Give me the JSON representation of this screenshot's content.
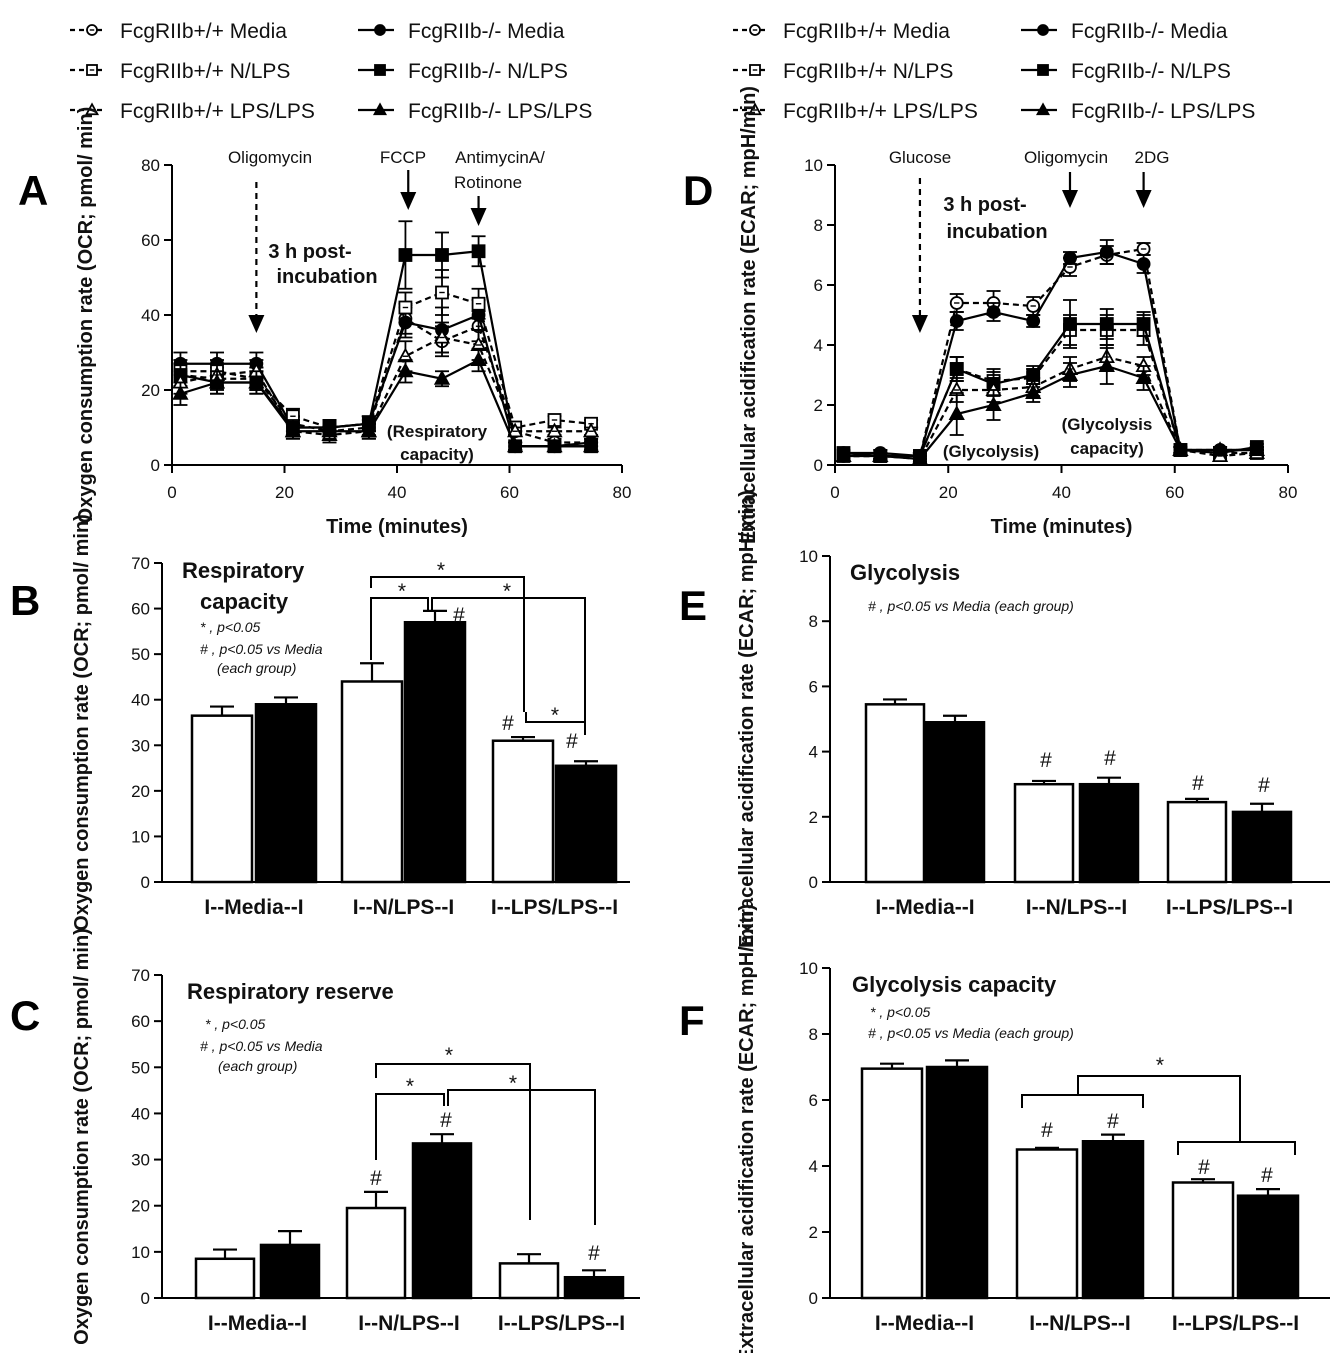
{
  "legend": [
    {
      "label": "FcgRIIb+/+ Media",
      "marker": "circle",
      "fill": "open",
      "dash": true
    },
    {
      "label": "FcgRIIb-/- Media",
      "marker": "circle",
      "fill": "filled",
      "dash": false
    },
    {
      "label": "FcgRIIb+/+ N/LPS",
      "marker": "square",
      "fill": "open",
      "dash": true
    },
    {
      "label": "FcgRIIb-/- N/LPS",
      "marker": "square",
      "fill": "filled",
      "dash": false
    },
    {
      "label": "FcgRIIb+/+ LPS/LPS",
      "marker": "triangle",
      "fill": "open",
      "dash": true
    },
    {
      "label": "FcgRIIb-/- LPS/LPS",
      "marker": "triangle",
      "fill": "filled",
      "dash": false
    }
  ],
  "chart_data": [
    {
      "panel": "A",
      "type": "line",
      "xlabel": "Time (minutes)",
      "ylabel": "Oxygen consumption rate (OCR; pmol/ min)",
      "xlim": [
        0,
        80
      ],
      "ylim": [
        0,
        80
      ],
      "xticks": [
        0,
        20,
        40,
        60,
        80
      ],
      "yticks": [
        0,
        20,
        40,
        60,
        80
      ],
      "x": [
        1.5,
        8,
        15,
        21.5,
        28,
        35,
        41.5,
        48,
        54.5,
        61,
        68,
        74.5
      ],
      "series": [
        {
          "legend": 0,
          "values": [
            24,
            23,
            23,
            11,
            9,
            10,
            39,
            33,
            37,
            9,
            6,
            6
          ],
          "err": [
            3,
            3,
            3,
            2,
            2,
            2,
            4,
            4,
            4,
            1,
            1,
            1
          ]
        },
        {
          "legend": 1,
          "values": [
            27,
            27,
            27,
            10,
            10,
            11,
            38,
            36,
            40,
            5,
            5,
            6
          ],
          "err": [
            3,
            3,
            3,
            2,
            2,
            2,
            4,
            6,
            4,
            1,
            1,
            1
          ]
        },
        {
          "legend": 2,
          "values": [
            25,
            25,
            23,
            13,
            10,
            11,
            42,
            46,
            43,
            10,
            12,
            11
          ],
          "err": [
            3,
            3,
            3,
            2,
            2,
            2,
            4,
            6,
            4,
            1,
            1,
            1
          ]
        },
        {
          "legend": 3,
          "values": [
            24,
            22,
            22,
            10,
            10,
            11,
            56,
            56,
            57,
            5,
            5,
            5
          ],
          "err": [
            3,
            3,
            3,
            2,
            2,
            2,
            9,
            6,
            4,
            1,
            1,
            1
          ]
        },
        {
          "legend": 4,
          "values": [
            22,
            24,
            25,
            9,
            8,
            9,
            29,
            34,
            32,
            9,
            9,
            9
          ],
          "err": [
            3,
            3,
            3,
            2,
            2,
            2,
            4,
            4,
            4,
            1,
            1,
            1
          ]
        },
        {
          "legend": 5,
          "values": [
            19,
            22,
            22,
            9,
            9,
            9,
            25,
            23,
            28,
            5,
            5,
            5
          ],
          "err": [
            3,
            3,
            3,
            2,
            2,
            2,
            3,
            2,
            3,
            1,
            1,
            1
          ]
        }
      ],
      "annotations": [
        {
          "text": "Oligomycin",
          "x": 15,
          "dashed": true
        },
        {
          "text": "FCCP",
          "x": 42,
          "dashed": false
        },
        {
          "text": "AntimycinA/",
          "text2": "Rotinone",
          "x": 54.5,
          "dashed": false
        }
      ],
      "labels": {
        "post1": "3 h post-",
        "post2": "incubation",
        "cap1": "(Respiratory",
        "cap2": "capacity)"
      }
    },
    {
      "panel": "D",
      "type": "line",
      "xlabel": "Time (minutes)",
      "ylabel": "Extracellular acidification rate (ECAR; mpH/min)",
      "xlim": [
        0,
        80
      ],
      "ylim": [
        0,
        10
      ],
      "xticks": [
        0,
        20,
        40,
        60,
        80
      ],
      "yticks": [
        0,
        2,
        4,
        6,
        8,
        10
      ],
      "x": [
        1.5,
        8,
        15,
        21.5,
        28,
        35,
        41.5,
        48,
        54.5,
        61,
        68,
        74.5
      ],
      "series": [
        {
          "legend": 0,
          "values": [
            0.3,
            0.3,
            0.3,
            5.4,
            5.4,
            5.3,
            6.6,
            7.0,
            7.2,
            0.5,
            0.5,
            0.5
          ],
          "err": [
            0.1,
            0.1,
            0.1,
            0.3,
            0.4,
            0.3,
            0.3,
            0.3,
            0.2,
            0.1,
            0.1,
            0.1
          ]
        },
        {
          "legend": 1,
          "values": [
            0.4,
            0.4,
            0.3,
            4.8,
            5.1,
            4.8,
            6.9,
            7.1,
            6.7,
            0.5,
            0.5,
            0.5
          ],
          "err": [
            0.1,
            0.1,
            0.1,
            0.3,
            0.3,
            0.2,
            0.2,
            0.4,
            0.3,
            0.1,
            0.1,
            0.1
          ]
        },
        {
          "legend": 2,
          "values": [
            0.3,
            0.3,
            0.3,
            3.2,
            2.8,
            2.9,
            4.5,
            4.5,
            4.5,
            0.5,
            0.4,
            0.4
          ],
          "err": [
            0.1,
            0.1,
            0.1,
            0.4,
            0.4,
            0.3,
            0.5,
            0.5,
            0.5,
            0.1,
            0.1,
            0.1
          ]
        },
        {
          "legend": 3,
          "values": [
            0.4,
            0.3,
            0.3,
            3.2,
            2.7,
            3.0,
            4.7,
            4.7,
            4.7,
            0.5,
            0.4,
            0.6
          ],
          "err": [
            0.1,
            0.1,
            0.1,
            0.4,
            0.4,
            0.3,
            0.8,
            0.5,
            0.4,
            0.1,
            0.1,
            0.1
          ]
        },
        {
          "legend": 4,
          "values": [
            0.3,
            0.3,
            0.2,
            2.5,
            2.5,
            2.6,
            3.2,
            3.6,
            3.3,
            0.5,
            0.3,
            0.4
          ],
          "err": [
            0.1,
            0.1,
            0.1,
            0.4,
            0.4,
            0.3,
            0.4,
            0.4,
            0.3,
            0.1,
            0.1,
            0.1
          ]
        },
        {
          "legend": 5,
          "values": [
            0.3,
            0.3,
            0.2,
            1.7,
            2.0,
            2.4,
            3.0,
            3.3,
            2.9,
            0.5,
            0.5,
            0.5
          ],
          "err": [
            0.1,
            0.1,
            0.1,
            0.7,
            0.5,
            0.3,
            0.4,
            0.6,
            0.4,
            0.1,
            0.1,
            0.1
          ]
        }
      ],
      "annotations": [
        {
          "text": "Glucose",
          "x": 15,
          "dashed": true
        },
        {
          "text": "Oligomycin",
          "x": 41.5,
          "dashed": false
        },
        {
          "text": "2DG",
          "x": 54.5,
          "dashed": false
        }
      ],
      "labels": {
        "post1": "3 h post-",
        "post2": "incubation",
        "gly": "(Glycolysis)",
        "cap1": "(Glycolysis",
        "cap2": "capacity)"
      }
    },
    {
      "panel": "B",
      "type": "bar",
      "title": "Respiratory",
      "title2": "capacity",
      "ylabel": "Oxygen consumption rate (OCR; pmol/ min)",
      "ylim": [
        0,
        70
      ],
      "yticks": [
        0,
        10,
        20,
        30,
        40,
        50,
        60,
        70
      ],
      "groups": [
        "I--Media--I",
        "I--N/LPS--I",
        "I--LPS/LPS--I"
      ],
      "values": [
        36.5,
        39,
        44,
        57,
        31,
        25.5
      ],
      "err": [
        2,
        1.5,
        4,
        2.5,
        0.8,
        1
      ],
      "notes": [
        "* , p<0.05",
        "# , p<0.05 vs Media",
        "(each group)"
      ]
    },
    {
      "panel": "C",
      "type": "bar",
      "title": "Respiratory reserve",
      "ylabel": "Oxygen consumption rate (OCR; pmol/ min)",
      "ylim": [
        0,
        70
      ],
      "yticks": [
        0,
        10,
        20,
        30,
        40,
        50,
        60,
        70
      ],
      "groups": [
        "I--Media--I",
        "I--N/LPS--I",
        "I--LPS/LPS--I"
      ],
      "values": [
        8.5,
        11.5,
        19.5,
        33.5,
        7.5,
        4.5
      ],
      "err": [
        2,
        3,
        3.5,
        2,
        2,
        1.5
      ],
      "notes": [
        "* , p<0.05",
        "# , p<0.05 vs Media",
        "(each group)"
      ]
    },
    {
      "panel": "E",
      "type": "bar",
      "title": "Glycolysis",
      "ylabel": "Extracellular acidification rate (ECAR; mpH/min)",
      "ylim": [
        0,
        10
      ],
      "yticks": [
        0,
        2,
        4,
        6,
        8,
        10
      ],
      "groups": [
        "I--Media--I",
        "I--N/LPS--I",
        "I--LPS/LPS--I"
      ],
      "values": [
        5.45,
        4.9,
        3.0,
        3.0,
        2.45,
        2.15
      ],
      "err": [
        0.15,
        0.2,
        0.1,
        0.2,
        0.1,
        0.25
      ],
      "notes": [
        "# , p<0.05 vs Media (each group)"
      ]
    },
    {
      "panel": "F",
      "type": "bar",
      "title": "Glycolysis capacity",
      "ylabel": "Extracellular acidification rate (ECAR; mpH/min)",
      "ylim": [
        0,
        10
      ],
      "yticks": [
        0,
        2,
        4,
        6,
        8,
        10
      ],
      "groups": [
        "I--Media--I",
        "I--N/LPS--I",
        "I--LPS/LPS--I"
      ],
      "values": [
        6.95,
        7.0,
        4.5,
        4.75,
        3.5,
        3.1
      ],
      "err": [
        0.15,
        0.2,
        0.05,
        0.2,
        0.1,
        0.2
      ],
      "notes": [
        "* , p<0.05",
        "# , p<0.05 vs Media (each group)"
      ]
    }
  ],
  "significance": {
    "star": "*",
    "hash": "#"
  }
}
